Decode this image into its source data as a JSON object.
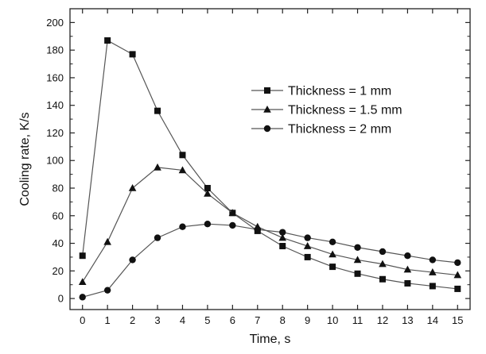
{
  "chart_data": {
    "type": "line",
    "title": "",
    "xlabel": "Time, s",
    "ylabel": "Cooling rate, K/s",
    "xlim": [
      -0.5,
      15.5
    ],
    "ylim": [
      -8,
      210
    ],
    "x_ticks": [
      0,
      1,
      2,
      3,
      4,
      5,
      6,
      7,
      8,
      9,
      10,
      11,
      12,
      13,
      14,
      15
    ],
    "y_ticks": [
      0,
      20,
      40,
      60,
      80,
      100,
      120,
      140,
      160,
      180,
      200
    ],
    "grid": false,
    "legend_position": "upper-right",
    "x": [
      0,
      1,
      2,
      3,
      4,
      5,
      6,
      7,
      8,
      9,
      10,
      11,
      12,
      13,
      14,
      15
    ],
    "series": [
      {
        "name": "Thickness = 1 mm",
        "marker": "square",
        "values": [
          31,
          187,
          177,
          136,
          104,
          80,
          62,
          49,
          38,
          30,
          23,
          18,
          14,
          11,
          9,
          7
        ]
      },
      {
        "name": "Thickness = 1.5 mm",
        "marker": "triangle",
        "values": [
          12,
          41,
          80,
          95,
          93,
          76,
          62,
          52,
          44,
          38,
          32,
          28,
          25,
          21,
          19,
          17
        ]
      },
      {
        "name": "Thickness = 2 mm",
        "marker": "circle",
        "values": [
          1,
          6,
          28,
          44,
          52,
          54,
          53,
          50,
          48,
          44,
          41,
          37,
          34,
          31,
          28,
          26
        ]
      }
    ],
    "colors": {
      "line": "#555555",
      "marker": "#111111",
      "axis": "#222222"
    }
  }
}
